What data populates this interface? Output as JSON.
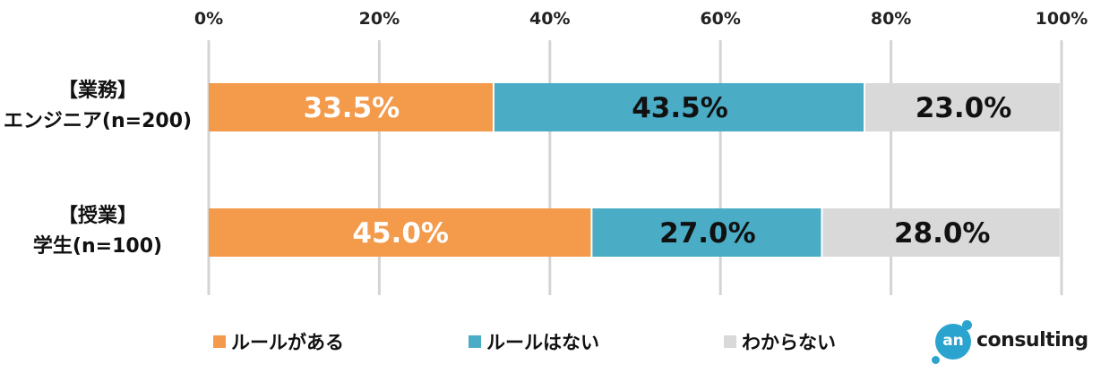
{
  "chart_data": {
    "type": "bar",
    "orientation": "horizontal",
    "stacked": true,
    "percent_stacked": true,
    "categories": [
      [
        "【業務】",
        "エンジニア(n=200)"
      ],
      [
        "【授業】",
        "学生(n=100)"
      ]
    ],
    "series": [
      {
        "name": "ルールがある",
        "values": [
          33.5,
          45.0
        ],
        "labels": [
          "33.5%",
          "45.0%"
        ],
        "color": "#f39a4b",
        "label_color": "#ffffff"
      },
      {
        "name": "ルールはない",
        "values": [
          43.5,
          27.0
        ],
        "labels": [
          "43.5%",
          "27.0%"
        ],
        "color": "#4bacc6",
        "label_color": "#111111"
      },
      {
        "name": "わからない",
        "values": [
          23.0,
          28.0
        ],
        "labels": [
          "23.0%",
          "28.0%"
        ],
        "color": "#d9d9d9",
        "label_color": "#111111"
      }
    ],
    "xlim": [
      0,
      100
    ],
    "xticks": [
      "0%",
      "20%",
      "40%",
      "60%",
      "80%",
      "100%"
    ],
    "xaxis_position": "top",
    "grid": true,
    "legend": "bottom"
  },
  "logo": {
    "mark": "an",
    "text": "consulting"
  }
}
